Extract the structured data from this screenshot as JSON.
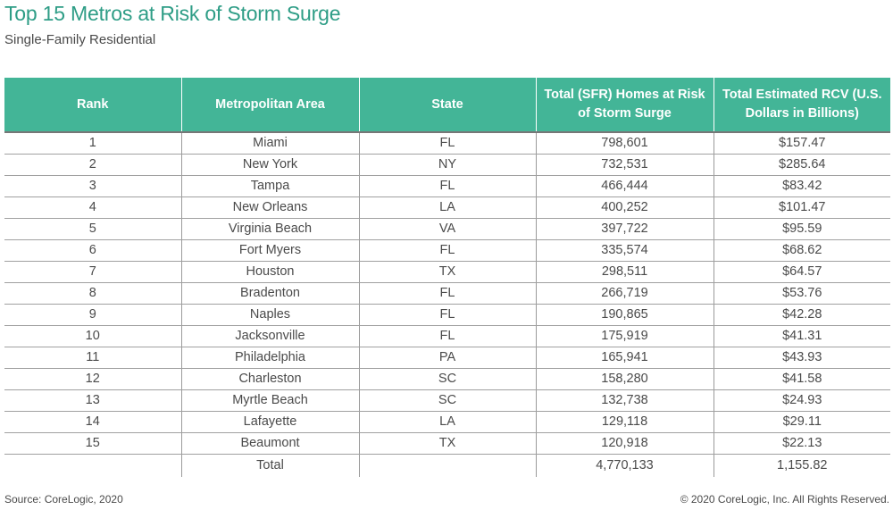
{
  "title": "Top 15 Metros at Risk of Storm Surge",
  "subtitle": "Single-Family Residential",
  "headers": {
    "rank": "Rank",
    "metro": "Metropolitan Area",
    "state": "State",
    "homes": "Total (SFR) Homes at Risk of Storm Surge",
    "rcv": "Total Estimated RCV (U.S. Dollars in Billions)"
  },
  "chart_data": {
    "type": "table",
    "columns": [
      "Rank",
      "Metropolitan Area",
      "State",
      "Total (SFR) Homes at Risk of Storm Surge",
      "Total Estimated RCV (U.S. Dollars in Billions)"
    ],
    "rows": [
      {
        "rank": "1",
        "metro": "Miami",
        "state": "FL",
        "homes": "798,601",
        "rcv": "$157.47"
      },
      {
        "rank": "2",
        "metro": "New York",
        "state": "NY",
        "homes": "732,531",
        "rcv": "$285.64"
      },
      {
        "rank": "3",
        "metro": "Tampa",
        "state": "FL",
        "homes": "466,444",
        "rcv": "$83.42"
      },
      {
        "rank": "4",
        "metro": "New Orleans",
        "state": "LA",
        "homes": "400,252",
        "rcv": "$101.47"
      },
      {
        "rank": "5",
        "metro": "Virginia Beach",
        "state": "VA",
        "homes": "397,722",
        "rcv": "$95.59"
      },
      {
        "rank": "6",
        "metro": "Fort Myers",
        "state": "FL",
        "homes": "335,574",
        "rcv": "$68.62"
      },
      {
        "rank": "7",
        "metro": "Houston",
        "state": "TX",
        "homes": "298,511",
        "rcv": "$64.57"
      },
      {
        "rank": "8",
        "metro": "Bradenton",
        "state": "FL",
        "homes": "266,719",
        "rcv": "$53.76"
      },
      {
        "rank": "9",
        "metro": "Naples",
        "state": "FL",
        "homes": "190,865",
        "rcv": "$42.28"
      },
      {
        "rank": "10",
        "metro": "Jacksonville",
        "state": "FL",
        "homes": "175,919",
        "rcv": "$41.31"
      },
      {
        "rank": "11",
        "metro": "Philadelphia",
        "state": "PA",
        "homes": "165,941",
        "rcv": "$43.93"
      },
      {
        "rank": "12",
        "metro": "Charleston",
        "state": "SC",
        "homes": "158,280",
        "rcv": "$41.58"
      },
      {
        "rank": "13",
        "metro": "Myrtle Beach",
        "state": "SC",
        "homes": "132,738",
        "rcv": "$24.93"
      },
      {
        "rank": "14",
        "metro": "Lafayette",
        "state": "LA",
        "homes": "129,118",
        "rcv": "$29.11"
      },
      {
        "rank": "15",
        "metro": "Beaumont",
        "state": "TX",
        "homes": "120,918",
        "rcv": "$22.13"
      }
    ],
    "total": {
      "label": "Total",
      "homes": "4,770,133",
      "rcv": "1,155.82"
    }
  },
  "footer": {
    "source": "Source: CoreLogic, 2020",
    "copyright": "© 2020 CoreLogic, Inc. All Rights Reserved."
  },
  "colors": {
    "title": "#2e9d86",
    "header_bg": "#43b597",
    "header_text": "#ffffff",
    "body_text": "#4a4a4a"
  }
}
